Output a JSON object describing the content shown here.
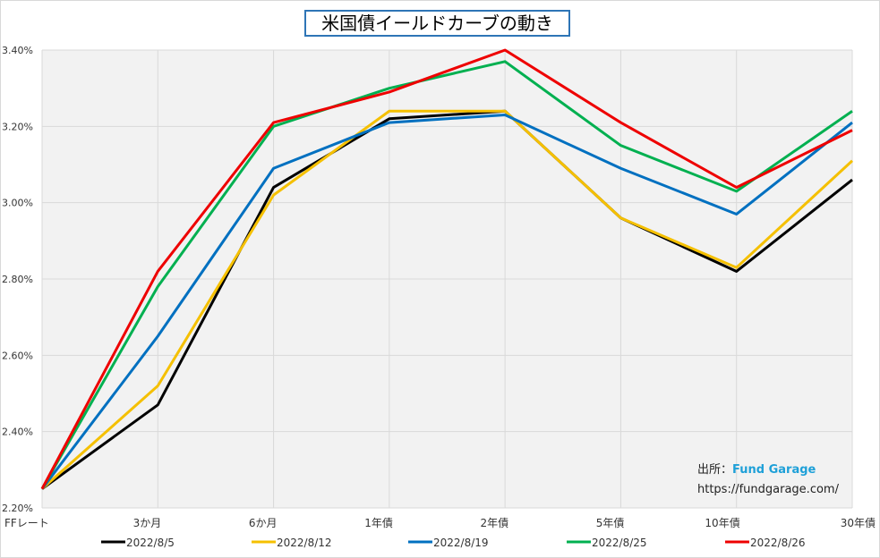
{
  "chart_data": {
    "type": "line",
    "title": "米国債イールドカーブの動き",
    "categories": [
      "FFレート",
      "3か月",
      "6か月",
      "1年債",
      "2年債",
      "5年債",
      "10年債",
      "30年債"
    ],
    "ylim": [
      2.2,
      3.4
    ],
    "yticks": [
      "2.20%",
      "2.40%",
      "2.60%",
      "2.80%",
      "3.00%",
      "3.20%",
      "3.40%"
    ],
    "ytick_values": [
      2.2,
      2.4,
      2.6,
      2.8,
      3.0,
      3.2,
      3.4
    ],
    "grid": true,
    "legend_position": "bottom",
    "series": [
      {
        "name": "2022/8/5",
        "color": "#000000",
        "values": [
          2.25,
          2.47,
          3.04,
          3.22,
          3.24,
          2.96,
          2.82,
          3.06
        ]
      },
      {
        "name": "2022/8/12",
        "color": "#f5c000",
        "values": [
          2.25,
          2.52,
          3.02,
          3.24,
          3.24,
          2.96,
          2.83,
          3.11
        ]
      },
      {
        "name": "2022/8/19",
        "color": "#0070c0",
        "values": [
          2.25,
          2.65,
          3.09,
          3.21,
          3.23,
          3.09,
          2.97,
          3.21
        ]
      },
      {
        "name": "2022/8/25",
        "color": "#00b050",
        "values": [
          2.25,
          2.78,
          3.2,
          3.3,
          3.37,
          3.15,
          3.03,
          3.24
        ]
      },
      {
        "name": "2022/8/26",
        "color": "#ee0000",
        "values": [
          2.25,
          2.82,
          3.21,
          3.29,
          3.4,
          3.21,
          3.04,
          3.19
        ]
      }
    ]
  },
  "source": {
    "label": "出所：",
    "brand": "Fund Garage",
    "url": "https://fundgarage.com/"
  }
}
